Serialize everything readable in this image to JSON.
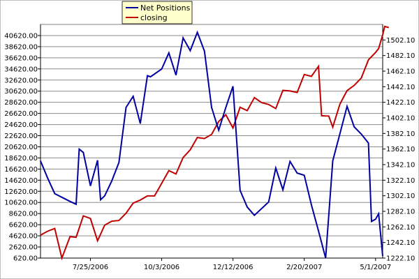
{
  "chart_data": {
    "type": "line",
    "title": "",
    "xlabel": "",
    "ylabel": "",
    "y2label": "",
    "grid": "horizontal",
    "legend_position": "top-left",
    "x_tick_labels": [
      "7/25/2006",
      "10/3/2006",
      "12/12/2006",
      "2/20/2007",
      "5/1/2007"
    ],
    "x_ticks": [
      "2006-07-25",
      "2006-10-03",
      "2006-12-12",
      "2007-02-20",
      "2007-05-01"
    ],
    "xlim": [
      "2006-06-06",
      "2007-05-08"
    ],
    "ylim": [
      620,
      42620
    ],
    "y_ticks": [
      620,
      2620,
      4620,
      6620,
      8620,
      10620,
      12620,
      14620,
      16620,
      18620,
      20620,
      22620,
      24620,
      26620,
      28620,
      30620,
      32620,
      34620,
      36620,
      38620,
      40620
    ],
    "y_tick_labels": [
      "620.00",
      "2620.00",
      "4620.00",
      "6620.00",
      "8620.00",
      "10620.00",
      "12620.00",
      "14620.00",
      "16620.00",
      "18620.00",
      "20620.00",
      "22620.00",
      "24620.00",
      "26620.00",
      "28620.00",
      "30620.00",
      "32620.00",
      "34620.00",
      "36620.00",
      "38620.00",
      "40620.00"
    ],
    "y2lim": [
      1222.1,
      1522.1
    ],
    "y2_ticks": [
      1222.1,
      1242.1,
      1262.1,
      1282.1,
      1302.1,
      1322.1,
      1342.1,
      1362.1,
      1382.1,
      1402.1,
      1422.1,
      1442.1,
      1462.1,
      1482.1,
      1502.1
    ],
    "y2_tick_labels": [
      "1222.10",
      "1242.10",
      "1262.10",
      "1282.10",
      "1302.10",
      "1322.10",
      "1342.10",
      "1362.10",
      "1382.10",
      "1402.10",
      "1422.10",
      "1442.10",
      "1462.10",
      "1482.10",
      "1502.10"
    ],
    "series": [
      {
        "name": "Net Positions",
        "axis": "left",
        "color": "#0000a0",
        "points": [
          [
            "2006-06-06",
            18100
          ],
          [
            "2006-06-13",
            15000
          ],
          [
            "2006-06-20",
            12200
          ],
          [
            "2006-07-05",
            10800
          ],
          [
            "2006-07-11",
            10300
          ],
          [
            "2006-07-14",
            20200
          ],
          [
            "2006-07-18",
            19600
          ],
          [
            "2006-07-25",
            13600
          ],
          [
            "2006-08-01",
            18200
          ],
          [
            "2006-08-04",
            11100
          ],
          [
            "2006-08-08",
            11800
          ],
          [
            "2006-08-15",
            14500
          ],
          [
            "2006-08-22",
            17800
          ],
          [
            "2006-08-29",
            27700
          ],
          [
            "2006-09-05",
            29700
          ],
          [
            "2006-09-12",
            24800
          ],
          [
            "2006-09-19",
            33400
          ],
          [
            "2006-09-22",
            33200
          ],
          [
            "2006-09-26",
            33700
          ],
          [
            "2006-10-03",
            34600
          ],
          [
            "2006-10-10",
            37500
          ],
          [
            "2006-10-17",
            33500
          ],
          [
            "2006-10-24",
            40200
          ],
          [
            "2006-10-31",
            37900
          ],
          [
            "2006-11-07",
            41200
          ],
          [
            "2006-11-14",
            37800
          ],
          [
            "2006-11-21",
            27700
          ],
          [
            "2006-11-28",
            23600
          ],
          [
            "2006-12-05",
            27700
          ],
          [
            "2006-12-12",
            31500
          ],
          [
            "2006-12-19",
            12800
          ],
          [
            "2006-12-26",
            9800
          ],
          [
            "2007-01-02",
            8300
          ],
          [
            "2007-01-16",
            10700
          ],
          [
            "2007-01-23",
            16800
          ],
          [
            "2007-01-30",
            12900
          ],
          [
            "2007-02-06",
            18000
          ],
          [
            "2007-02-13",
            15900
          ],
          [
            "2007-02-20",
            15500
          ],
          [
            "2007-02-27",
            10200
          ],
          [
            "2007-03-06",
            5500
          ],
          [
            "2007-03-13",
            620
          ],
          [
            "2007-03-20",
            18100
          ],
          [
            "2007-03-27",
            23000
          ],
          [
            "2007-04-03",
            27900
          ],
          [
            "2007-04-10",
            24200
          ],
          [
            "2007-04-17",
            22900
          ],
          [
            "2007-04-24",
            21300
          ],
          [
            "2007-04-27",
            7200
          ],
          [
            "2007-05-01",
            7600
          ],
          [
            "2007-05-04",
            8600
          ],
          [
            "2007-05-08",
            1000
          ]
        ]
      },
      {
        "name": "closing",
        "axis": "right",
        "color": "#c00000",
        "points": [
          [
            "2006-06-06",
            1251.6
          ],
          [
            "2006-06-13",
            1256.6
          ],
          [
            "2006-06-20",
            1260.1
          ],
          [
            "2006-06-27",
            1222.1
          ],
          [
            "2006-07-05",
            1249.7
          ],
          [
            "2006-07-11",
            1248.8
          ],
          [
            "2006-07-18",
            1276.3
          ],
          [
            "2006-07-25",
            1272.9
          ],
          [
            "2006-08-01",
            1244.3
          ],
          [
            "2006-08-08",
            1264.4
          ],
          [
            "2006-08-15",
            1269.5
          ],
          [
            "2006-08-22",
            1270.4
          ],
          [
            "2006-08-29",
            1279.7
          ],
          [
            "2006-09-05",
            1292.7
          ],
          [
            "2006-09-12",
            1296.6
          ],
          [
            "2006-09-19",
            1301.9
          ],
          [
            "2006-09-26",
            1301.9
          ],
          [
            "2006-10-03",
            1318.0
          ],
          [
            "2006-10-10",
            1334.4
          ],
          [
            "2006-10-17",
            1330.1
          ],
          [
            "2006-10-24",
            1351.1
          ],
          [
            "2006-10-31",
            1361.1
          ],
          [
            "2006-11-07",
            1376.9
          ],
          [
            "2006-11-14",
            1375.6
          ],
          [
            "2006-11-21",
            1380.9
          ],
          [
            "2006-11-28",
            1397.5
          ],
          [
            "2006-12-05",
            1406.1
          ],
          [
            "2006-12-12",
            1389.1
          ],
          [
            "2006-12-19",
            1415.7
          ],
          [
            "2006-12-26",
            1411.4
          ],
          [
            "2007-01-02",
            1428.2
          ],
          [
            "2007-01-09",
            1421.7
          ],
          [
            "2007-01-16",
            1419.3
          ],
          [
            "2007-01-23",
            1414.1
          ],
          [
            "2007-01-30",
            1437.5
          ],
          [
            "2007-02-06",
            1436.7
          ],
          [
            "2007-02-13",
            1434.7
          ],
          [
            "2007-02-20",
            1457.8
          ],
          [
            "2007-02-27",
            1455.4
          ],
          [
            "2007-03-06",
            1468.3
          ],
          [
            "2007-03-09",
            1404.9
          ],
          [
            "2007-03-13",
            1404.6
          ],
          [
            "2007-03-16",
            1404.5
          ],
          [
            "2007-03-20",
            1390.3
          ],
          [
            "2007-03-27",
            1419.9
          ],
          [
            "2007-04-03",
            1437.1
          ],
          [
            "2007-04-10",
            1443.8
          ],
          [
            "2007-04-17",
            1453.3
          ],
          [
            "2007-04-24",
            1476.6
          ],
          [
            "2007-05-01",
            1486.1
          ],
          [
            "2007-05-04",
            1491.2
          ],
          [
            "2007-05-08",
            1508.7
          ],
          [
            "2007-05-10",
            1519.5
          ],
          [
            "2007-05-14",
            1518.0
          ]
        ]
      }
    ]
  }
}
